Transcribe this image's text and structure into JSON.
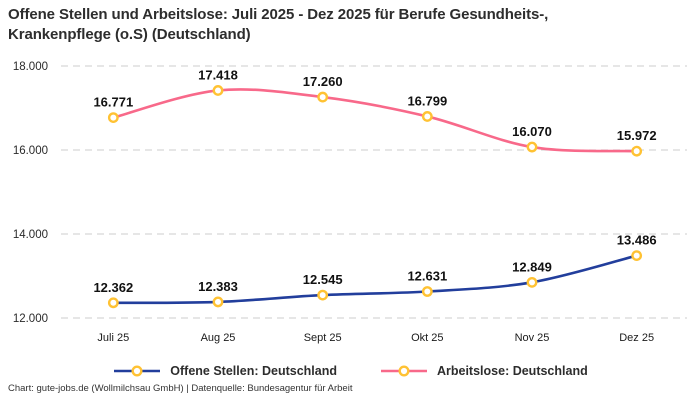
{
  "header": {
    "title": "Offene Stellen und Arbeitslose: Juli 2025 - Dez 2025 für Berufe Gesundheits-,\nKrankenpflege (o.S) (Deutschland)"
  },
  "chart_data": {
    "type": "line",
    "title": "Offene Stellen und Arbeitslose: Juli 2025 - Dez 2025 für Berufe Gesundheits-, Krankenpflege (o.S) (Deutschland)",
    "categories": [
      "Juli 25",
      "Aug 25",
      "Sept 25",
      "Okt 25",
      "Nov 25",
      "Dez 25"
    ],
    "series": [
      {
        "name": "Offene Stellen: Deutschland",
        "color": "#223e9c",
        "values": [
          12362,
          12383,
          12545,
          12631,
          12849,
          13486
        ],
        "point_labels": [
          "12.362",
          "12.383",
          "12.545",
          "12.631",
          "12.849",
          "13.486"
        ]
      },
      {
        "name": "Arbeitslose: Deutschland",
        "color": "#f8698a",
        "values": [
          16771,
          17418,
          17260,
          16799,
          16070,
          15972
        ],
        "point_labels": [
          "16.771",
          "17.418",
          "17.260",
          "16.799",
          "16.070",
          "15.972"
        ]
      }
    ],
    "y_ticks": [
      {
        "value": 18000,
        "label": "18.000"
      },
      {
        "value": 16000,
        "label": "16.000"
      },
      {
        "value": 14000,
        "label": "14.000"
      },
      {
        "value": 12000,
        "label": "12.000"
      }
    ],
    "ylim": [
      12000,
      18000
    ],
    "grid": "dashed-horizontal",
    "grid_color": "#cccccc",
    "legend_position": "bottom",
    "marker": {
      "fill": "#ffffff",
      "ring": "#ffc233"
    }
  },
  "legend": {
    "items": [
      {
        "label": "Offene Stellen: Deutschland",
        "color": "#223e9c"
      },
      {
        "label": "Arbeitslose: Deutschland",
        "color": "#f8698a"
      }
    ]
  },
  "footer": {
    "text": "Chart: gute-jobs.de (Wollmilchsau GmbH) | Datenquelle: Bundesagentur für Arbeit"
  }
}
